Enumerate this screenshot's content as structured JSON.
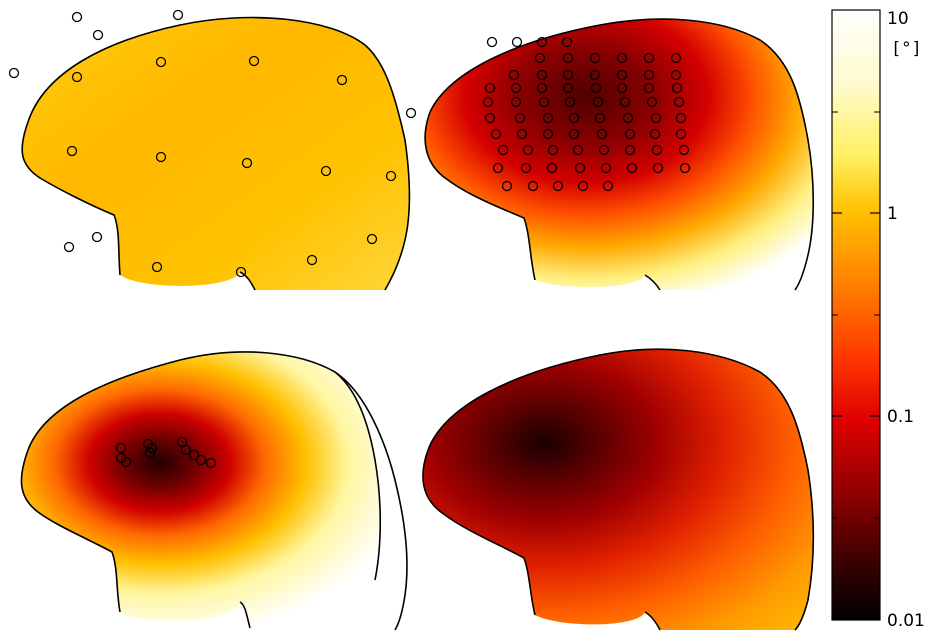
{
  "figure": {
    "colorbar": {
      "scale": "log",
      "range": [
        0.01,
        10
      ],
      "colormap": [
        "#000000",
        "#5a0000",
        "#c00000",
        "#ff2a00",
        "#ff7f00",
        "#ffbf00",
        "#ffee40",
        "#ffffc0",
        "#ffffff"
      ],
      "tick_labels": [
        "10",
        "1",
        "0.1",
        "0.01"
      ],
      "unit": "[°]"
    },
    "panels": [
      {
        "id": "top-left",
        "theme": "uniform-orange",
        "electrode_count": 20
      },
      {
        "id": "top-right",
        "theme": "dense-grid-dark",
        "electrode_count": 56
      },
      {
        "id": "bottom-left",
        "theme": "focal-cluster",
        "electrode_count": 11
      },
      {
        "id": "bottom-right",
        "theme": "broad-dark",
        "electrode_count": 0
      }
    ]
  }
}
